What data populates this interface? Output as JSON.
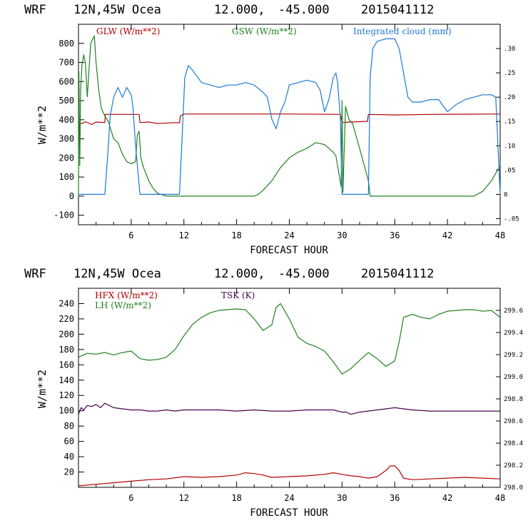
{
  "chart_data": [
    {
      "type": "line",
      "header": {
        "model": "WRF",
        "location": "12N,45W Ocea",
        "lat": "12.000,",
        "lon": "-45.000",
        "date": "2015041112"
      },
      "xlabel": "FORECAST HOUR",
      "ylabel": "W/m**2",
      "xlim": [
        0,
        48
      ],
      "x_ticks": [
        "6",
        "12",
        "18",
        "24",
        "30",
        "36",
        "42",
        "48"
      ],
      "ylim": [
        -150,
        900
      ],
      "y_ticks": [
        "800",
        "700",
        "600",
        "500",
        "400",
        "300",
        "200",
        "100",
        "0",
        "-100"
      ],
      "y2lim": [
        -0.0625,
        0.35
      ],
      "y2_ticks": [
        ".30",
        ".25",
        ".20",
        ".15",
        ".10",
        ".05",
        "0",
        "-.05"
      ],
      "series": [
        {
          "name": "GLW (W/m**2)",
          "color": "#b40000",
          "axis": "left",
          "x": [
            0,
            0.4,
            0.8,
            1.5,
            2,
            3,
            3.05,
            6.9,
            7,
            8,
            9,
            11,
            11.5,
            11.6,
            12,
            18,
            24,
            29.8,
            30,
            31,
            32.9,
            33,
            36,
            40,
            48
          ],
          "values": [
            385,
            380,
            390,
            375,
            388,
            385,
            428,
            428,
            385,
            388,
            380,
            385,
            384,
            420,
            430,
            430,
            430,
            428,
            385,
            388,
            392,
            428,
            425,
            428,
            430
          ]
        },
        {
          "name": "GSW (W/m**2)",
          "color": "#208020",
          "axis": "left",
          "x": [
            0,
            0.05,
            0.15,
            0.25,
            0.4,
            0.6,
            0.8,
            1,
            1.4,
            1.8,
            2,
            2.3,
            2.6,
            3,
            3.4,
            4,
            4.5,
            5,
            5.5,
            6,
            6.5,
            6.7,
            6.9,
            7.1,
            7.4,
            8,
            8.5,
            9,
            10,
            12,
            18,
            20,
            20.5,
            21,
            22,
            23,
            24,
            25,
            26,
            27,
            28,
            29,
            29.3,
            29.6,
            29.9,
            30,
            30.1,
            30.4,
            30.8,
            31.2,
            32,
            33,
            33.2,
            40,
            45,
            46,
            47,
            48
          ],
          "values": [
            0,
            650,
            160,
            560,
            690,
            740,
            690,
            520,
            800,
            840,
            700,
            560,
            460,
            420,
            390,
            300,
            280,
            220,
            180,
            170,
            180,
            320,
            340,
            200,
            150,
            80,
            40,
            15,
            0,
            0,
            0,
            0,
            10,
            30,
            80,
            150,
            200,
            230,
            250,
            280,
            270,
            230,
            210,
            130,
            50,
            500,
            20,
            470,
            400,
            380,
            250,
            80,
            0,
            0,
            0,
            25,
            80,
            160
          ]
        },
        {
          "name": "Integrated cloud (mm)",
          "color": "#1a7ad4",
          "axis": "right",
          "x": [
            0,
            3,
            3.2,
            3.4,
            3.6,
            4,
            4.5,
            5,
            5.5,
            6,
            6.2,
            6.5,
            6.8,
            7,
            8,
            9,
            10,
            11.5,
            12.1,
            12.5,
            13,
            14,
            15,
            16,
            17,
            18,
            19,
            20,
            21,
            21.5,
            22,
            22.5,
            23,
            23.5,
            24,
            25,
            26,
            27,
            27.5,
            28,
            28.5,
            29,
            29.3,
            29.5,
            29.8,
            30,
            33,
            33.2,
            33.5,
            34,
            35,
            36,
            36.5,
            37,
            37.5,
            38,
            39,
            40,
            41,
            42,
            43,
            44,
            45,
            46,
            47,
            47.5,
            48
          ],
          "values": [
            0,
            0,
            0.05,
            0.1,
            0.16,
            0.2,
            0.22,
            0.2,
            0.22,
            0.205,
            0.18,
            0.1,
            0.04,
            0,
            0,
            0,
            0,
            0,
            0.24,
            0.265,
            0.255,
            0.23,
            0.225,
            0.22,
            0.225,
            0.225,
            0.23,
            0.225,
            0.21,
            0.2,
            0.155,
            0.135,
            0.17,
            0.19,
            0.225,
            0.23,
            0.235,
            0.23,
            0.215,
            0.17,
            0.195,
            0.24,
            0.25,
            0.23,
            0.16,
            0,
            0,
            0.24,
            0.3,
            0.315,
            0.32,
            0.32,
            0.3,
            0.25,
            0.2,
            0.19,
            0.19,
            0.195,
            0.195,
            0.17,
            0.185,
            0.195,
            0.2,
            0.205,
            0.205,
            0.2,
            0.0
          ]
        }
      ]
    },
    {
      "type": "line",
      "header": {
        "model": "WRF",
        "location": "12N,45W Ocea",
        "lat": "12.000,",
        "lon": "-45.000",
        "date": "2015041112"
      },
      "xlabel": "FORECAST HOUR",
      "ylabel": "W/m**2",
      "xlim": [
        0,
        48
      ],
      "x_ticks": [
        "6",
        "12",
        "18",
        "24",
        "30",
        "36",
        "42",
        "48"
      ],
      "ylim": [
        0,
        260
      ],
      "y_ticks": [
        "240",
        "220",
        "200",
        "180",
        "160",
        "140",
        "120",
        "100",
        "80",
        "60",
        "40",
        "20"
      ],
      "y2lim": [
        298.0,
        299.8
      ],
      "y2_ticks": [
        "299.6",
        "299.4",
        "299.2",
        "299.0",
        "298.8",
        "298.6",
        "298.4",
        "298.2",
        "298.0"
      ],
      "series": [
        {
          "name": "HFX (W/m**2)",
          "color": "#b40000",
          "axis": "left",
          "x": [
            0,
            2,
            4,
            6,
            8,
            10,
            12,
            14,
            16,
            18,
            19,
            20,
            21,
            22,
            24,
            26,
            28,
            29,
            30,
            31,
            32,
            33,
            34,
            35,
            35.5,
            36,
            36.5,
            37,
            38,
            40,
            42,
            44,
            46,
            48
          ],
          "values": [
            2,
            4,
            6,
            8,
            10,
            11,
            14,
            13,
            14,
            16,
            19,
            18,
            16,
            13,
            14,
            15,
            17,
            19,
            17,
            15,
            14,
            12,
            14,
            22,
            28,
            28,
            22,
            12,
            10,
            11,
            12,
            13,
            12,
            11
          ]
        },
        {
          "name": "LH (W/m**2)",
          "color": "#208020",
          "axis": "left",
          "x": [
            0,
            1,
            2,
            3,
            4,
            5,
            6,
            7,
            8,
            9,
            10,
            11,
            12,
            13,
            14,
            15,
            16,
            17,
            18,
            19,
            20,
            21,
            22,
            22.5,
            23,
            24,
            25,
            26,
            27,
            28,
            29,
            30,
            31,
            32,
            33,
            34,
            35,
            36,
            36.5,
            37,
            38,
            39,
            40,
            41,
            42,
            43,
            44,
            45,
            46,
            47,
            48
          ],
          "values": [
            170,
            175,
            174,
            176,
            173,
            176,
            178,
            168,
            166,
            167,
            170,
            180,
            198,
            213,
            222,
            228,
            231,
            232,
            233,
            232,
            220,
            205,
            212,
            235,
            240,
            220,
            196,
            188,
            184,
            178,
            164,
            148,
            155,
            166,
            176,
            168,
            158,
            165,
            190,
            222,
            226,
            222,
            220,
            226,
            230,
            231,
            232,
            232,
            230,
            231,
            222
          ]
        },
        {
          "name": "TSK (K)",
          "color": "#4b0050",
          "axis": "right",
          "x": [
            0,
            0.3,
            0.6,
            1,
            1.5,
            2,
            2.5,
            3,
            3.5,
            4,
            5,
            6,
            7,
            8,
            9,
            10,
            11,
            12,
            14,
            16,
            18,
            20,
            22,
            24,
            26,
            28,
            29,
            30,
            30.5,
            31,
            32,
            33,
            34,
            35,
            36,
            37,
            38,
            40,
            42,
            44,
            46,
            48
          ],
          "values": [
            298.66,
            298.72,
            298.7,
            298.74,
            298.73,
            298.75,
            298.72,
            298.76,
            298.74,
            298.72,
            298.71,
            298.7,
            298.7,
            298.69,
            298.69,
            298.7,
            298.69,
            298.7,
            298.7,
            298.7,
            298.69,
            298.7,
            298.69,
            298.69,
            298.7,
            298.7,
            298.7,
            298.68,
            298.68,
            298.66,
            298.68,
            298.69,
            298.7,
            298.71,
            298.72,
            298.71,
            298.7,
            298.69,
            298.69,
            298.69,
            298.69,
            298.69
          ]
        }
      ]
    }
  ]
}
